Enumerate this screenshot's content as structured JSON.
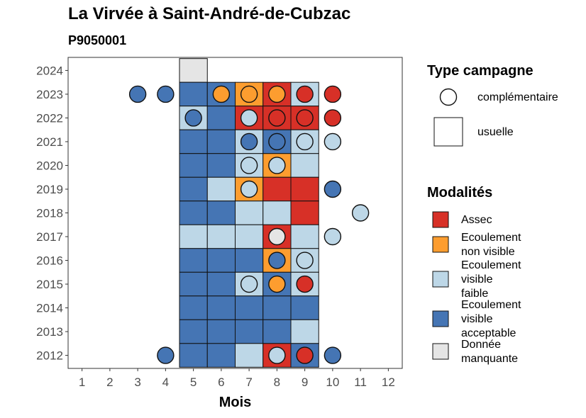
{
  "title": "La Virvée à Saint-André-de-Cubzac",
  "subtitle": "P9050001",
  "colors": {
    "Assec": "#d73027",
    "Ecoulement non visible": "#fd9d2f",
    "Ecoulement visible faible": "#bdd7e7",
    "Ecoulement visible acceptable": "#4575b4",
    "Donnée manquante": "#e5e5e5"
  },
  "chart_data": {
    "type": "heatmap",
    "xlabel": "Mois",
    "ylabel": "",
    "x_ticks": [
      "1",
      "2",
      "3",
      "4",
      "5",
      "6",
      "7",
      "8",
      "9",
      "10",
      "11",
      "12"
    ],
    "y_ticks": [
      "2012",
      "2013",
      "2014",
      "2015",
      "2016",
      "2017",
      "2018",
      "2019",
      "2020",
      "2021",
      "2022",
      "2023",
      "2024"
    ],
    "xlim": [
      0.5,
      12.5
    ],
    "ylim": [
      2011.45,
      2024.55
    ],
    "legend_type": {
      "title": "Type campagne",
      "items": [
        {
          "label": "complémentaire",
          "shape": "circle"
        },
        {
          "label": "usuelle",
          "shape": "square"
        }
      ]
    },
    "legend_modalites": {
      "title": "Modalités",
      "items": [
        {
          "key": "Assec",
          "lines": [
            "Assec"
          ]
        },
        {
          "key": "Ecoulement non visible",
          "lines": [
            "Ecoulement",
            "non visible"
          ]
        },
        {
          "key": "Ecoulement visible faible",
          "lines": [
            "Ecoulement",
            "visible",
            "faible"
          ]
        },
        {
          "key": "Ecoulement visible acceptable",
          "lines": [
            "Ecoulement",
            "visible",
            "acceptable"
          ]
        },
        {
          "key": "Donnée manquante",
          "lines": [
            "Donnée",
            "manquante"
          ]
        }
      ]
    },
    "usuelle": [
      {
        "year": 2024,
        "month": 5,
        "value": "Donnée manquante"
      },
      {
        "year": 2023,
        "month": 5,
        "value": "Ecoulement visible acceptable"
      },
      {
        "year": 2023,
        "month": 6,
        "value": "Ecoulement visible acceptable"
      },
      {
        "year": 2023,
        "month": 7,
        "value": "Ecoulement non visible"
      },
      {
        "year": 2023,
        "month": 8,
        "value": "Assec"
      },
      {
        "year": 2023,
        "month": 9,
        "value": "Ecoulement visible faible"
      },
      {
        "year": 2022,
        "month": 5,
        "value": "Ecoulement visible faible"
      },
      {
        "year": 2022,
        "month": 6,
        "value": "Ecoulement visible acceptable"
      },
      {
        "year": 2022,
        "month": 7,
        "value": "Assec"
      },
      {
        "year": 2022,
        "month": 8,
        "value": "Assec"
      },
      {
        "year": 2022,
        "month": 9,
        "value": "Assec"
      },
      {
        "year": 2021,
        "month": 5,
        "value": "Ecoulement visible acceptable"
      },
      {
        "year": 2021,
        "month": 6,
        "value": "Ecoulement visible acceptable"
      },
      {
        "year": 2021,
        "month": 7,
        "value": "Ecoulement visible faible"
      },
      {
        "year": 2021,
        "month": 8,
        "value": "Ecoulement visible acceptable"
      },
      {
        "year": 2021,
        "month": 9,
        "value": "Ecoulement visible faible"
      },
      {
        "year": 2020,
        "month": 5,
        "value": "Ecoulement visible acceptable"
      },
      {
        "year": 2020,
        "month": 6,
        "value": "Ecoulement visible acceptable"
      },
      {
        "year": 2020,
        "month": 7,
        "value": "Ecoulement visible faible"
      },
      {
        "year": 2020,
        "month": 8,
        "value": "Ecoulement non visible"
      },
      {
        "year": 2020,
        "month": 9,
        "value": "Ecoulement visible faible"
      },
      {
        "year": 2019,
        "month": 5,
        "value": "Ecoulement visible acceptable"
      },
      {
        "year": 2019,
        "month": 6,
        "value": "Ecoulement visible faible"
      },
      {
        "year": 2019,
        "month": 7,
        "value": "Ecoulement non visible"
      },
      {
        "year": 2019,
        "month": 8,
        "value": "Assec"
      },
      {
        "year": 2019,
        "month": 9,
        "value": "Assec"
      },
      {
        "year": 2018,
        "month": 5,
        "value": "Ecoulement visible acceptable"
      },
      {
        "year": 2018,
        "month": 6,
        "value": "Ecoulement visible acceptable"
      },
      {
        "year": 2018,
        "month": 7,
        "value": "Ecoulement visible faible"
      },
      {
        "year": 2018,
        "month": 8,
        "value": "Ecoulement visible faible"
      },
      {
        "year": 2018,
        "month": 9,
        "value": "Assec"
      },
      {
        "year": 2017,
        "month": 5,
        "value": "Ecoulement visible faible"
      },
      {
        "year": 2017,
        "month": 6,
        "value": "Ecoulement visible faible"
      },
      {
        "year": 2017,
        "month": 7,
        "value": "Ecoulement visible faible"
      },
      {
        "year": 2017,
        "month": 8,
        "value": "Assec"
      },
      {
        "year": 2017,
        "month": 9,
        "value": "Ecoulement visible faible"
      },
      {
        "year": 2016,
        "month": 5,
        "value": "Ecoulement visible acceptable"
      },
      {
        "year": 2016,
        "month": 6,
        "value": "Ecoulement visible acceptable"
      },
      {
        "year": 2016,
        "month": 7,
        "value": "Ecoulement visible acceptable"
      },
      {
        "year": 2016,
        "month": 8,
        "value": "Ecoulement non visible"
      },
      {
        "year": 2016,
        "month": 9,
        "value": "Ecoulement visible faible"
      },
      {
        "year": 2015,
        "month": 5,
        "value": "Ecoulement visible acceptable"
      },
      {
        "year": 2015,
        "month": 6,
        "value": "Ecoulement visible acceptable"
      },
      {
        "year": 2015,
        "month": 7,
        "value": "Ecoulement visible faible"
      },
      {
        "year": 2015,
        "month": 8,
        "value": "Ecoulement visible acceptable"
      },
      {
        "year": 2015,
        "month": 9,
        "value": "Ecoulement visible faible"
      },
      {
        "year": 2014,
        "month": 5,
        "value": "Ecoulement visible acceptable"
      },
      {
        "year": 2014,
        "month": 6,
        "value": "Ecoulement visible acceptable"
      },
      {
        "year": 2014,
        "month": 7,
        "value": "Ecoulement visible acceptable"
      },
      {
        "year": 2014,
        "month": 8,
        "value": "Ecoulement visible acceptable"
      },
      {
        "year": 2014,
        "month": 9,
        "value": "Ecoulement visible acceptable"
      },
      {
        "year": 2013,
        "month": 5,
        "value": "Ecoulement visible acceptable"
      },
      {
        "year": 2013,
        "month": 6,
        "value": "Ecoulement visible acceptable"
      },
      {
        "year": 2013,
        "month": 7,
        "value": "Ecoulement visible acceptable"
      },
      {
        "year": 2013,
        "month": 8,
        "value": "Ecoulement visible acceptable"
      },
      {
        "year": 2013,
        "month": 9,
        "value": "Ecoulement visible faible"
      },
      {
        "year": 2012,
        "month": 5,
        "value": "Ecoulement visible acceptable"
      },
      {
        "year": 2012,
        "month": 6,
        "value": "Ecoulement visible acceptable"
      },
      {
        "year": 2012,
        "month": 7,
        "value": "Ecoulement visible faible"
      },
      {
        "year": 2012,
        "month": 8,
        "value": "Assec"
      },
      {
        "year": 2012,
        "month": 9,
        "value": "Ecoulement visible acceptable"
      }
    ],
    "complementaire": [
      {
        "year": 2023,
        "month": 3,
        "value": "Ecoulement visible acceptable"
      },
      {
        "year": 2023,
        "month": 4,
        "value": "Ecoulement visible acceptable"
      },
      {
        "year": 2023,
        "month": 6,
        "value": "Ecoulement non visible"
      },
      {
        "year": 2023,
        "month": 7,
        "value": "Ecoulement non visible"
      },
      {
        "year": 2023,
        "month": 8,
        "value": "Ecoulement non visible"
      },
      {
        "year": 2023,
        "month": 9,
        "value": "Assec"
      },
      {
        "year": 2023,
        "month": 10,
        "value": "Assec"
      },
      {
        "year": 2022,
        "month": 5,
        "value": "Ecoulement visible acceptable"
      },
      {
        "year": 2022,
        "month": 7,
        "value": "Ecoulement visible faible"
      },
      {
        "year": 2022,
        "month": 8,
        "value": "Assec"
      },
      {
        "year": 2022,
        "month": 9,
        "value": "Assec"
      },
      {
        "year": 2022,
        "month": 10,
        "value": "Assec"
      },
      {
        "year": 2021,
        "month": 7,
        "value": "Ecoulement visible acceptable"
      },
      {
        "year": 2021,
        "month": 8,
        "value": "Ecoulement visible acceptable"
      },
      {
        "year": 2021,
        "month": 9,
        "value": "Ecoulement visible faible"
      },
      {
        "year": 2021,
        "month": 10,
        "value": "Ecoulement visible faible"
      },
      {
        "year": 2020,
        "month": 7,
        "value": "Ecoulement visible faible"
      },
      {
        "year": 2020,
        "month": 8,
        "value": "Ecoulement visible faible"
      },
      {
        "year": 2019,
        "month": 7,
        "value": "Ecoulement visible faible"
      },
      {
        "year": 2019,
        "month": 10,
        "value": "Ecoulement visible acceptable"
      },
      {
        "year": 2018,
        "month": 11,
        "value": "Ecoulement visible faible"
      },
      {
        "year": 2017,
        "month": 8,
        "value": "Donnée manquante"
      },
      {
        "year": 2017,
        "month": 10,
        "value": "Ecoulement visible faible"
      },
      {
        "year": 2016,
        "month": 8,
        "value": "Ecoulement visible acceptable"
      },
      {
        "year": 2016,
        "month": 9,
        "value": "Ecoulement visible faible"
      },
      {
        "year": 2015,
        "month": 7,
        "value": "Ecoulement visible faible"
      },
      {
        "year": 2015,
        "month": 8,
        "value": "Ecoulement non visible"
      },
      {
        "year": 2015,
        "month": 9,
        "value": "Assec"
      },
      {
        "year": 2012,
        "month": 4,
        "value": "Ecoulement visible acceptable"
      },
      {
        "year": 2012,
        "month": 8,
        "value": "Ecoulement visible faible"
      },
      {
        "year": 2012,
        "month": 9,
        "value": "Assec"
      },
      {
        "year": 2012,
        "month": 10,
        "value": "Ecoulement visible acceptable"
      }
    ]
  }
}
